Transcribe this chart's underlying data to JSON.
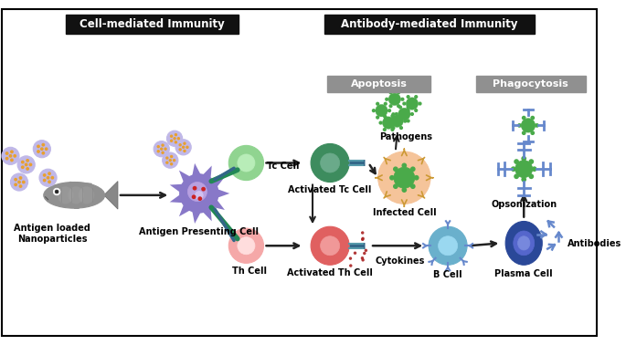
{
  "title_left": "Cell-mediated Immunity",
  "title_right": "Antibody-mediated Immunity",
  "label_apoptosis": "Apoptosis",
  "label_phagocytosis": "Phagocytosis",
  "label_antigen": "Antigen loaded\nNanoparticles",
  "label_apc": "Antigen Presenting Cell",
  "label_tc": "Tc Cell",
  "label_th": "Th Cell",
  "label_act_tc": "Activated Tc Cell",
  "label_act_th": "Activated Th Cell",
  "label_infected": "Infected Cell",
  "label_cytokines": "Cytokines",
  "label_bcell": "B Cell",
  "label_plasma": "Plasma Cell",
  "label_pathogens": "Pathogens",
  "label_opsonization": "Opsonization",
  "label_antibodies": "Antibodies",
  "bg_color": "#ffffff",
  "border_color": "#000000",
  "title_bg": "#000000",
  "title_fg": "#ffffff",
  "gray_box_bg": "#999999",
  "gray_box_fg": "#ffffff",
  "apc_color": "#8878c8",
  "tc_color": "#90d490",
  "act_tc_color": "#3d8c5e",
  "infected_color": "#f5c49a",
  "th_color": "#f5a8a8",
  "act_th_color": "#f08080",
  "bcell_color": "#6ab0cc",
  "plasma_color": "#2a4898",
  "pathogen_color": "#4aaa4a",
  "nanoparticle_color": "#c0b8e8",
  "antibody_color": "#6688cc",
  "fish_color": "#888888",
  "cytokine_color": "#aa2222",
  "arrow_color": "#222222",
  "infected_spike_color": "#cc9933",
  "needle_green": "#228855",
  "needle_blue": "#336688"
}
